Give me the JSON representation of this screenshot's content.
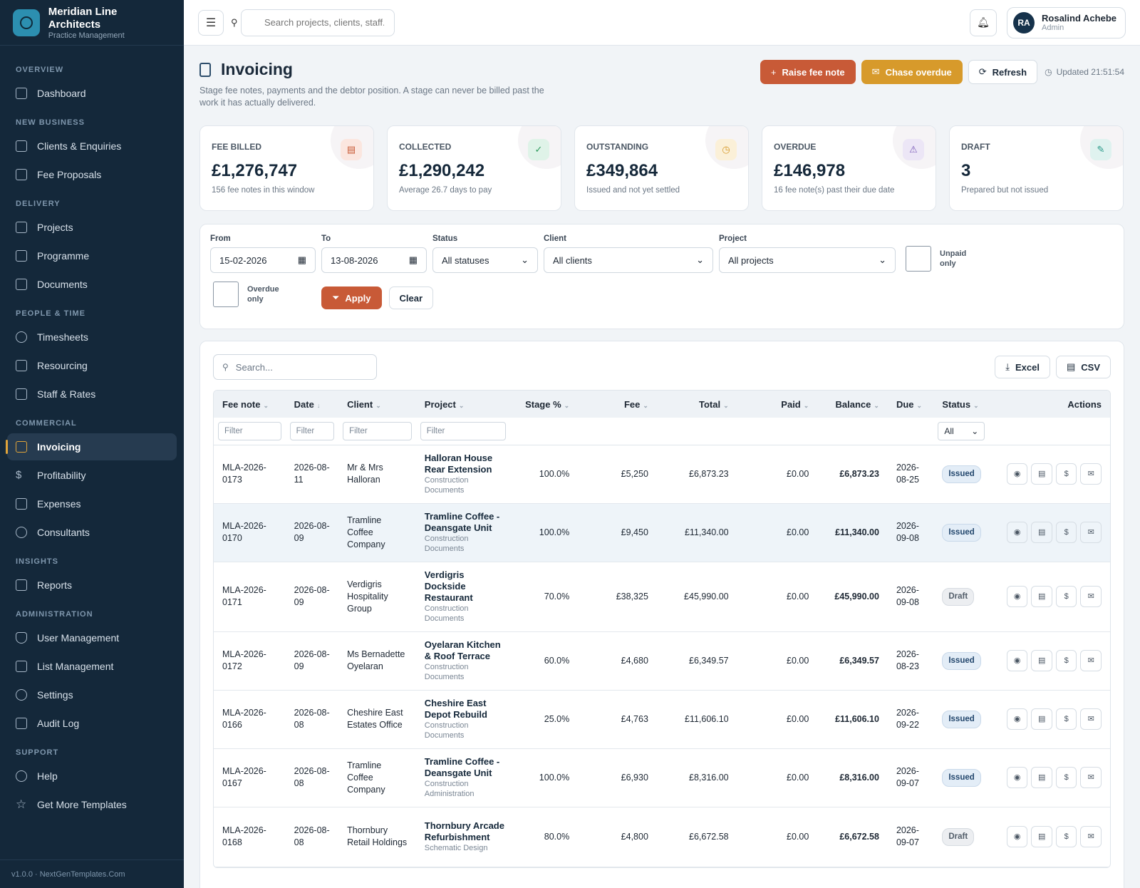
{
  "brand": {
    "name": "Meridian Line Architects",
    "sub": "Practice Management"
  },
  "nav": {
    "overview": "OVERVIEW",
    "dashboard": "Dashboard",
    "new_business": "NEW BUSINESS",
    "clients": "Clients & Enquiries",
    "proposals": "Fee Proposals",
    "delivery": "DELIVERY",
    "projects": "Projects",
    "programme": "Programme",
    "documents": "Documents",
    "people": "PEOPLE & TIME",
    "timesheets": "Timesheets",
    "resourcing": "Resourcing",
    "staff": "Staff & Rates",
    "commercial": "COMMERCIAL",
    "invoicing": "Invoicing",
    "profitability": "Profitability",
    "expenses": "Expenses",
    "consultants": "Consultants",
    "insights": "INSIGHTS",
    "reports": "Reports",
    "administration": "ADMINISTRATION",
    "users": "User Management",
    "lists": "List Management",
    "settings": "Settings",
    "audit": "Audit Log",
    "support": "SUPPORT",
    "help": "Help",
    "templates": "Get More Templates",
    "footer": "v1.0.0 · NextGenTemplates.Com"
  },
  "topbar": {
    "search_placeholder": "Search projects, clients, staff...",
    "user_initials": "RA",
    "user_name": "Rosalind Achebe",
    "user_role": "Admin"
  },
  "page": {
    "title": "Invoicing",
    "subtitle": "Stage fee notes, payments and the debtor position. A stage can never be billed past the work it has actually delivered.",
    "raise": "Raise fee note",
    "chase": "Chase overdue",
    "refresh": "Refresh",
    "updated": "Updated 21:51:54"
  },
  "kpis": [
    {
      "label": "Fee billed",
      "value": "£1,276,747",
      "note": "156 fee notes in this window"
    },
    {
      "label": "Collected",
      "value": "£1,290,242",
      "note": "Average 26.7 days to pay"
    },
    {
      "label": "Outstanding",
      "value": "£349,864",
      "note": "Issued and not yet settled"
    },
    {
      "label": "Overdue",
      "value": "£146,978",
      "note": "16 fee note(s) past their due date"
    },
    {
      "label": "Draft",
      "value": "3",
      "note": "Prepared but not issued"
    }
  ],
  "filters": {
    "from_label": "From",
    "from": "15-02-2026",
    "to_label": "To",
    "to": "13-08-2026",
    "status_label": "Status",
    "status": "All statuses",
    "client_label": "Client",
    "client": "All clients",
    "project_label": "Project",
    "project": "All projects",
    "unpaid": "Unpaid only",
    "overdue": "Overdue only",
    "apply": "Apply",
    "clear": "Clear"
  },
  "table": {
    "search_placeholder": "Search...",
    "excel": "Excel",
    "csv": "CSV",
    "columns": [
      "Fee note",
      "Date",
      "Client",
      "Project",
      "Stage %",
      "Fee",
      "Total",
      "Paid",
      "Balance",
      "Due",
      "Status",
      "Actions"
    ],
    "filter_placeholder": "Filter",
    "status_filter": "All",
    "rows": [
      {
        "note": "MLA-2026-0173",
        "date": "2026-08-11",
        "client": "Mr & Mrs Halloran",
        "project": "Halloran House Rear Extension",
        "stage": "Construction Documents",
        "pct": "100.0%",
        "fee": "£5,250",
        "total": "£6,873.23",
        "paid": "£0.00",
        "balance": "£6,873.23",
        "due": "2026-08-25",
        "status": "Issued"
      },
      {
        "note": "MLA-2026-0170",
        "date": "2026-08-09",
        "client": "Tramline Coffee Company",
        "project": "Tramline Coffee - Deansgate Unit",
        "stage": "Construction Documents",
        "pct": "100.0%",
        "fee": "£9,450",
        "total": "£11,340.00",
        "paid": "£0.00",
        "balance": "£11,340.00",
        "due": "2026-09-08",
        "status": "Issued"
      },
      {
        "note": "MLA-2026-0171",
        "date": "2026-08-09",
        "client": "Verdigris Hospitality Group",
        "project": "Verdigris Dockside Restaurant",
        "stage": "Construction Documents",
        "pct": "70.0%",
        "fee": "£38,325",
        "total": "£45,990.00",
        "paid": "£0.00",
        "balance": "£45,990.00",
        "due": "2026-09-08",
        "status": "Draft"
      },
      {
        "note": "MLA-2026-0172",
        "date": "2026-08-09",
        "client": "Ms Bernadette Oyelaran",
        "project": "Oyelaran Kitchen & Roof Terrace",
        "stage": "Construction Documents",
        "pct": "60.0%",
        "fee": "£4,680",
        "total": "£6,349.57",
        "paid": "£0.00",
        "balance": "£6,349.57",
        "due": "2026-08-23",
        "status": "Issued"
      },
      {
        "note": "MLA-2026-0166",
        "date": "2026-08-08",
        "client": "Cheshire East Estates Office",
        "project": "Cheshire East Depot Rebuild",
        "stage": "Construction Documents",
        "pct": "25.0%",
        "fee": "£4,763",
        "total": "£11,606.10",
        "paid": "£0.00",
        "balance": "£11,606.10",
        "due": "2026-09-22",
        "status": "Issued"
      },
      {
        "note": "MLA-2026-0167",
        "date": "2026-08-08",
        "client": "Tramline Coffee Company",
        "project": "Tramline Coffee - Deansgate Unit",
        "stage": "Construction Administration",
        "pct": "100.0%",
        "fee": "£6,930",
        "total": "£8,316.00",
        "paid": "£0.00",
        "balance": "£8,316.00",
        "due": "2026-09-07",
        "status": "Issued"
      },
      {
        "note": "MLA-2026-0168",
        "date": "2026-08-08",
        "client": "Thornbury Retail Holdings",
        "project": "Thornbury Arcade Refurbishment",
        "stage": "Schematic Design",
        "pct": "80.0%",
        "fee": "£4,800",
        "total": "£6,672.58",
        "paid": "£0.00",
        "balance": "£6,672.58",
        "due": "2026-09-07",
        "status": "Draft"
      }
    ]
  }
}
